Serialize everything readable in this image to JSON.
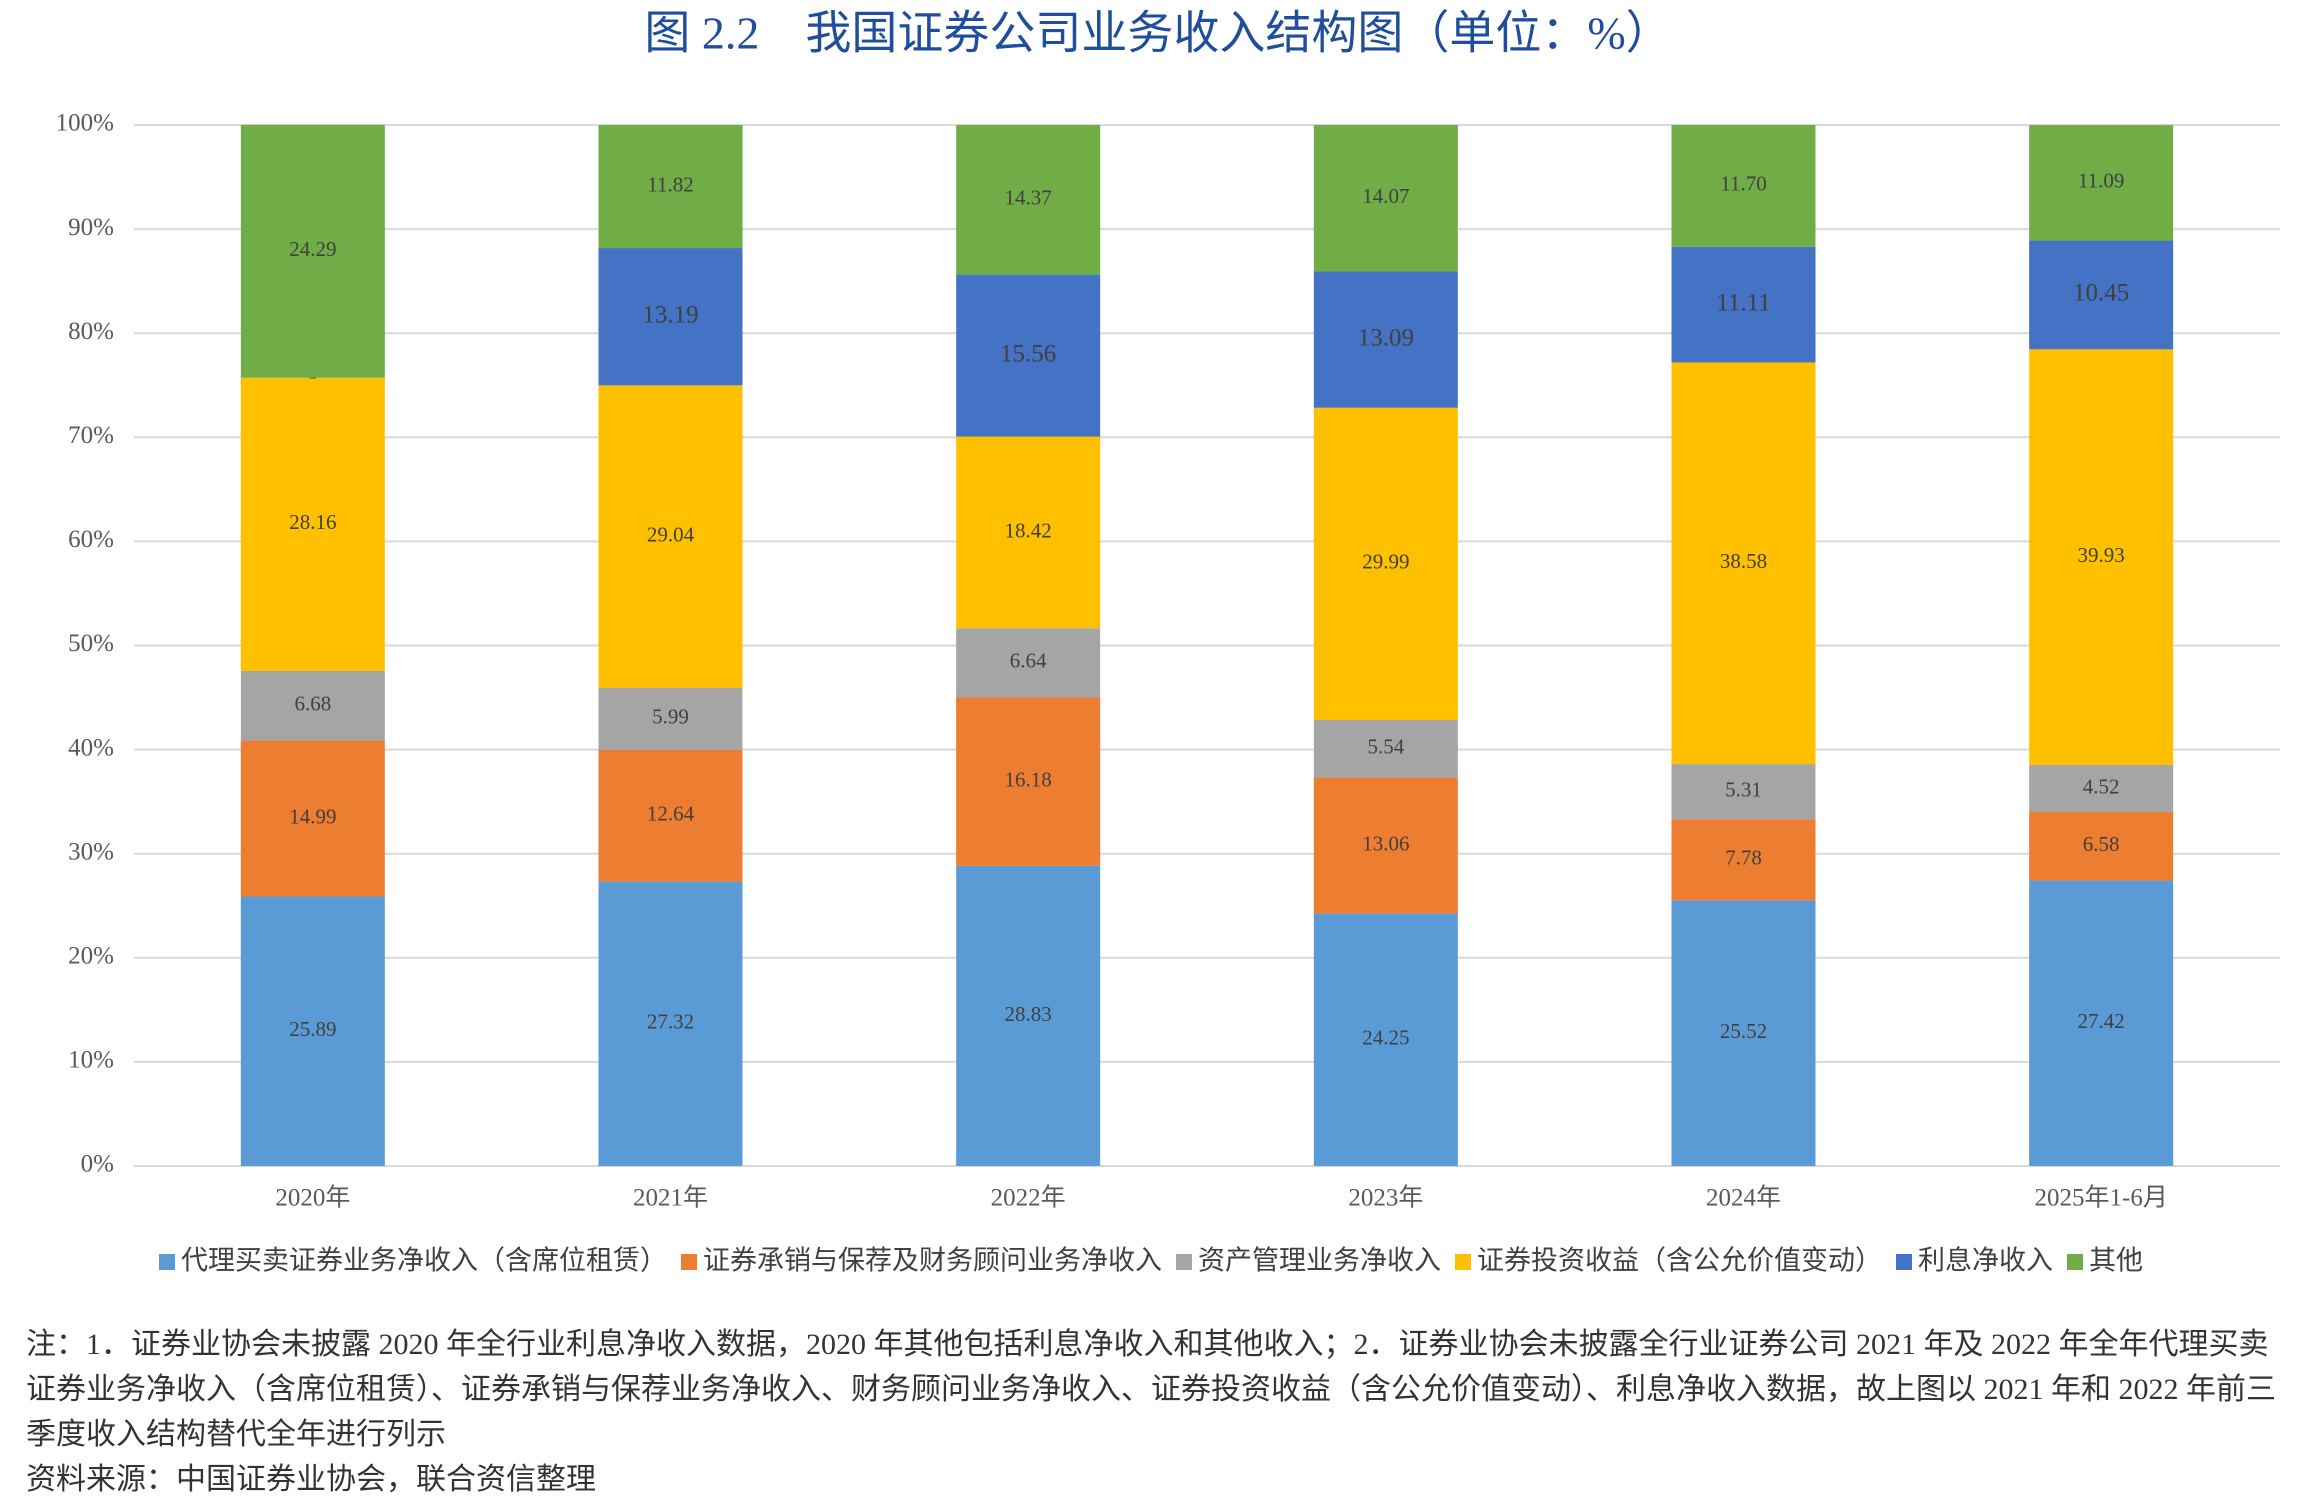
{
  "chart_data": {
    "type": "stacked_bar",
    "title": "图 2.2　我国证券公司业务收入结构图（单位：%）",
    "categories": [
      "2020年",
      "2021年",
      "2022年",
      "2023年",
      "2024年",
      "2025年1-6月"
    ],
    "series": [
      {
        "name": "代理买卖证券业务净收入（含席位租赁）",
        "color": "#5b9bd5",
        "values": [
          25.89,
          27.32,
          28.83,
          24.25,
          25.52,
          27.42
        ],
        "value_labels": [
          "25.89",
          "27.32",
          "28.83",
          "24.25",
          "25.52",
          "27.42"
        ]
      },
      {
        "name": "证券承销与保荐及财务顾问业务净收入",
        "color": "#ed7d31",
        "values": [
          14.99,
          12.64,
          16.18,
          13.06,
          7.78,
          6.58
        ],
        "value_labels": [
          "14.99",
          "12.64",
          "16.18",
          "13.06",
          "7.78",
          "6.58"
        ]
      },
      {
        "name": "资产管理业务净收入",
        "color": "#a5a5a5",
        "values": [
          6.68,
          5.99,
          6.64,
          5.54,
          5.31,
          4.52
        ],
        "value_labels": [
          "6.68",
          "5.99",
          "6.64",
          "5.54",
          "5.31",
          "4.52"
        ]
      },
      {
        "name": "证券投资收益（含公允价值变动）",
        "color": "#ffc000",
        "values": [
          28.16,
          29.04,
          18.42,
          29.99,
          38.58,
          39.93
        ],
        "value_labels": [
          "28.16",
          "29.04",
          "18.42",
          "29.99",
          "38.58",
          "39.93"
        ]
      },
      {
        "name": "利息净收入",
        "color": "#4472c4",
        "values": [
          null,
          13.19,
          15.56,
          13.09,
          11.11,
          10.45
        ],
        "value_labels": [
          "-",
          "13.19",
          "15.56",
          "13.09",
          "11.11",
          "10.45"
        ]
      },
      {
        "name": "其他",
        "color": "#70ad47",
        "values": [
          24.29,
          11.82,
          14.37,
          14.07,
          11.7,
          11.09
        ],
        "value_labels": [
          "24.29",
          "11.82",
          "14.37",
          "14.07",
          "11.70",
          "11.09"
        ]
      }
    ],
    "ylim": [
      0,
      100
    ],
    "yticks": [
      {
        "value": 0,
        "label": "0%"
      },
      {
        "value": 10,
        "label": "10%"
      },
      {
        "value": 20,
        "label": "20%"
      },
      {
        "value": 30,
        "label": "30%"
      },
      {
        "value": 40,
        "label": "40%"
      },
      {
        "value": 50,
        "label": "50%"
      },
      {
        "value": 60,
        "label": "60%"
      },
      {
        "value": 70,
        "label": "70%"
      },
      {
        "value": 80,
        "label": "80%"
      },
      {
        "value": 90,
        "label": "90%"
      },
      {
        "value": 100,
        "label": "100%"
      }
    ],
    "grid": true,
    "legend": "bottom",
    "note": "注：1．证券业协会未披露 2020 年全行业利息净收入数据，2020 年其他包括利息净收入和其他收入；2．证券业协会未披露全行业证券公司 2021 年及 2022 年全年代理买卖证券业务净收入（含席位租赁）、证券承销与保荐业务净收入、财务顾问业务净收入、证券投资收益（含公允价值变动）、利息净收入数据，故上图以 2021 年和 2022 年前三季度收入结构替代全年进行列示",
    "source": "资料来源：中国证券业协会，联合资信整理"
  }
}
